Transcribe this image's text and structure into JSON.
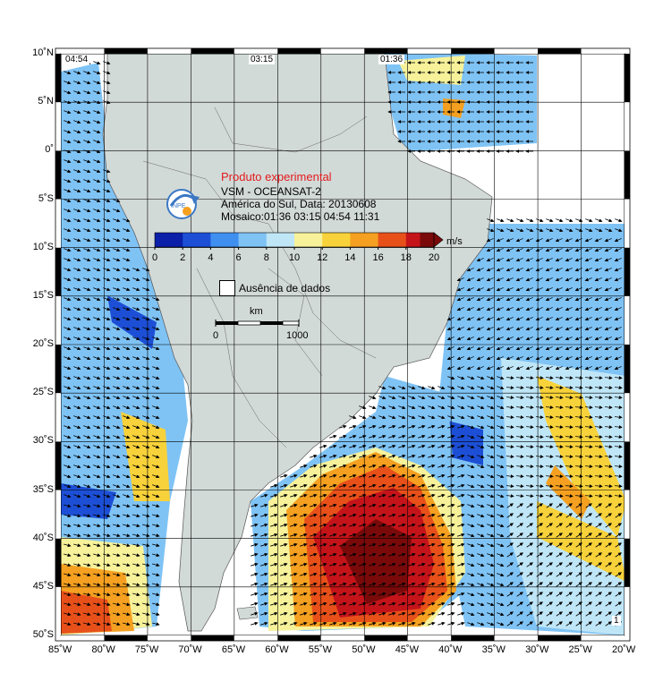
{
  "header": {
    "experimental": "Produto experimental",
    "line1": "VSM - OCEANSAT-2",
    "line2": "América do Sul, Data: 20130608",
    "line3": "Mosaico:01:36 03:15 04:54 11:31"
  },
  "pass_times": [
    "04:54",
    "03:15",
    "01:36"
  ],
  "corner_label": "1",
  "colorbar": {
    "unit": "m/s",
    "ticks": [
      "0",
      "2",
      "4",
      "6",
      "8",
      "10",
      "12",
      "14",
      "16",
      "18",
      "20"
    ],
    "colors": [
      "#0b1fa8",
      "#1d4fd6",
      "#3f8ff0",
      "#7fc3f5",
      "#bfe6f7",
      "#f7f29a",
      "#f8d23a",
      "#f5a020",
      "#e8501a",
      "#c4141a",
      "#7a0a0a"
    ]
  },
  "legend": {
    "no_data": "Ausência de dados"
  },
  "scale": {
    "label": "km",
    "start": "0",
    "end": "1000"
  },
  "axes": {
    "lat_labels": [
      "10˚N",
      "5˚N",
      "0˚",
      "5˚S",
      "10˚S",
      "15˚S",
      "20˚S",
      "25˚S",
      "30˚S",
      "35˚S",
      "40˚S",
      "45˚S",
      "50˚S"
    ],
    "lon_labels": [
      "85˚W",
      "80˚W",
      "75˚W",
      "70˚W",
      "65˚W",
      "60˚W",
      "55˚W",
      "50˚W",
      "45˚W",
      "40˚W",
      "35˚W",
      "30˚W",
      "25˚W",
      "20˚W"
    ],
    "lat_range": [
      -50,
      10
    ],
    "lon_range": [
      -85,
      -20
    ]
  },
  "colors": {
    "land": "#d2dad8",
    "ocean_no_data": "#ffffff",
    "grid": "#000000"
  }
}
